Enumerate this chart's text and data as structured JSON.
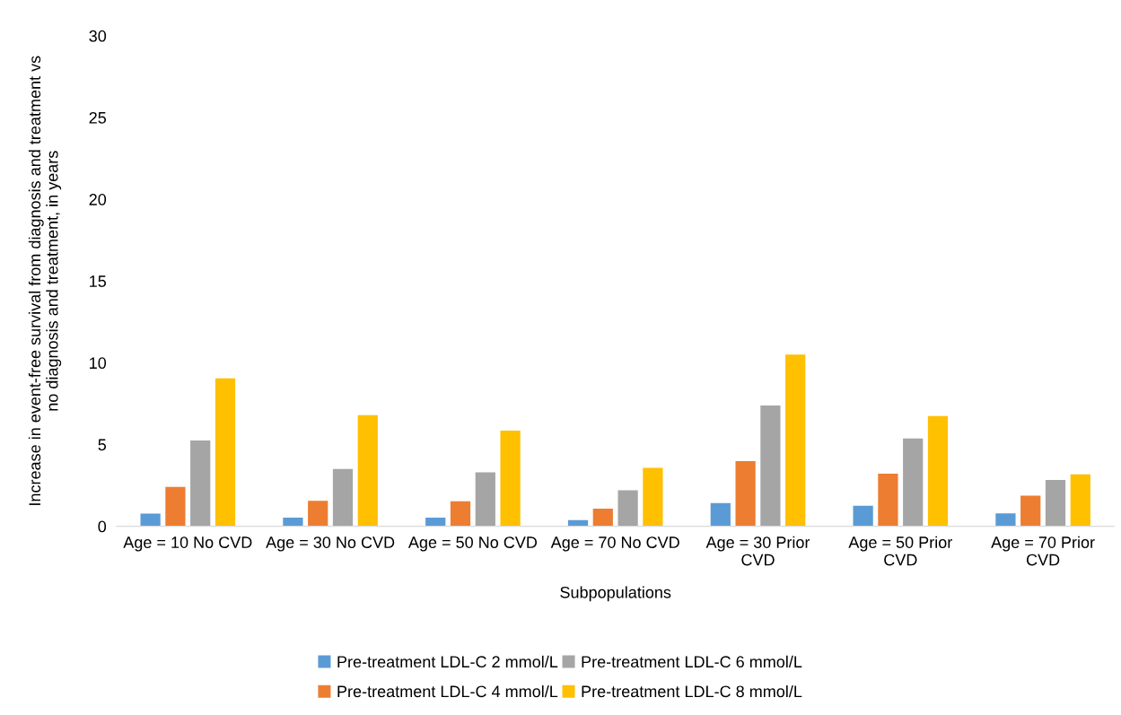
{
  "chart_data": {
    "type": "bar",
    "xlabel": "Subpopulations",
    "ylabel": "Increase in event-free survival from diagnosis and treatment vs\nno diagnosis and treatment, in years",
    "categories": [
      "Age = 10 No CVD",
      "Age = 30 No CVD",
      "Age = 50 No CVD",
      "Age = 70 No CVD",
      "Age = 30 Prior\nCVD",
      "Age = 50 Prior\nCVD",
      "Age = 70 Prior\nCVD"
    ],
    "series": [
      {
        "name": "Pre-treatment LDL-C 2 mmol/L",
        "color": "#5b9bd5",
        "values": [
          0.78,
          0.53,
          0.53,
          0.38,
          1.42,
          1.26,
          0.79
        ]
      },
      {
        "name": "Pre-treatment LDL-C 4 mmol/L",
        "color": "#ed7d31",
        "values": [
          2.4,
          1.55,
          1.53,
          1.08,
          3.98,
          3.21,
          1.87
        ]
      },
      {
        "name": "Pre-treatment LDL-C 6 mmol/L",
        "color": "#a5a5a5",
        "values": [
          5.25,
          3.5,
          3.3,
          2.2,
          7.39,
          5.37,
          2.83
        ]
      },
      {
        "name": "Pre-treatment LDL-C 8 mmol/L",
        "color": "#ffc000",
        "values": [
          9.05,
          6.8,
          5.85,
          3.57,
          10.5,
          6.74,
          3.17
        ]
      }
    ],
    "ylim": [
      0,
      30
    ],
    "yticks": [
      0,
      5,
      10,
      15,
      20,
      25,
      30
    ],
    "grid": false,
    "legend": "bottom"
  }
}
